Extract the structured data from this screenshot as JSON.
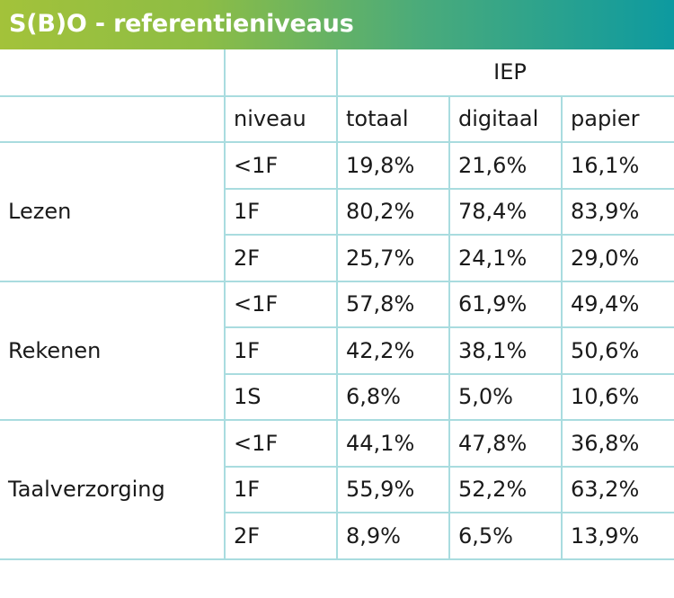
{
  "header": {
    "title": "S(B)O - referentieniveaus",
    "gradient_colors": [
      "#a3c23a",
      "#4bab7a",
      "#0d9aa0"
    ]
  },
  "table": {
    "group_header": "IEP",
    "columns": {
      "level": "niveau",
      "total": "totaal",
      "digital": "digitaal",
      "paper": "papier"
    },
    "subjects": [
      {
        "name": "Lezen",
        "rows": [
          {
            "level": "<1F",
            "total": "19,8%",
            "digital": "21,6%",
            "paper": "16,1%"
          },
          {
            "level": "1F",
            "total": "80,2%",
            "digital": "78,4%",
            "paper": "83,9%"
          },
          {
            "level": "2F",
            "total": "25,7%",
            "digital": "24,1%",
            "paper": "29,0%"
          }
        ]
      },
      {
        "name": "Rekenen",
        "rows": [
          {
            "level": "<1F",
            "total": "57,8%",
            "digital": "61,9%",
            "paper": "49,4%"
          },
          {
            "level": "1F",
            "total": "42,2%",
            "digital": "38,1%",
            "paper": "50,6%"
          },
          {
            "level": "1S",
            "total": "6,8%",
            "digital": "5,0%",
            "paper": "10,6%"
          }
        ]
      },
      {
        "name": "Taalverzorging",
        "rows": [
          {
            "level": "<1F",
            "total": "44,1%",
            "digital": "47,8%",
            "paper": "36,8%"
          },
          {
            "level": "1F",
            "total": "55,9%",
            "digital": "52,2%",
            "paper": "63,2%"
          },
          {
            "level": "2F",
            "total": "8,9%",
            "digital": "6,5%",
            "paper": "13,9%"
          }
        ]
      }
    ],
    "border_color": "#a9dcdf"
  }
}
